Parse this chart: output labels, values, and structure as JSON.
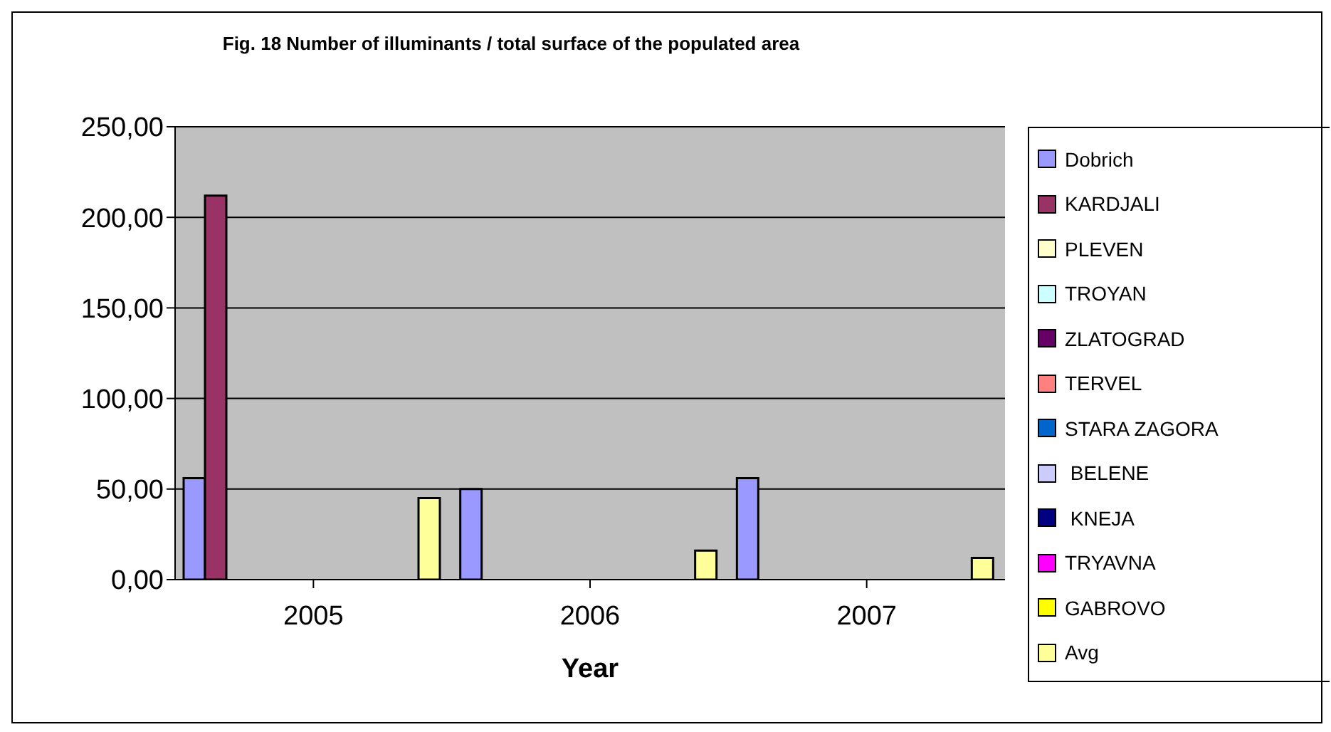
{
  "chart_data": {
    "type": "bar",
    "title": "Fig. 18 Number of illuminants / total surface of the populated area",
    "xlabel": "Year",
    "categories": [
      "2005",
      "2006",
      "2007"
    ],
    "series": [
      {
        "name": "Dobrich",
        "color": "#9999ff",
        "values": [
          56,
          50,
          56
        ]
      },
      {
        "name": "KARDJALI",
        "color": "#993366",
        "values": [
          212,
          null,
          null
        ]
      },
      {
        "name": "PLEVEN",
        "color": "#ffffcc",
        "values": [
          null,
          null,
          null
        ]
      },
      {
        "name": "TROYAN",
        "color": "#ccffff",
        "values": [
          null,
          null,
          null
        ]
      },
      {
        "name": "ZLATOGRAD",
        "color": "#660066",
        "values": [
          null,
          null,
          null
        ]
      },
      {
        "name": "TERVEL",
        "color": "#ff8080",
        "values": [
          null,
          null,
          null
        ]
      },
      {
        "name": "STARA ZAGORA",
        "color": "#0066cc",
        "values": [
          null,
          null,
          null
        ]
      },
      {
        "name": " BELENE",
        "color": "#ccccff",
        "values": [
          null,
          null,
          null
        ]
      },
      {
        "name": " KNEJA",
        "color": "#000080",
        "values": [
          null,
          null,
          null
        ]
      },
      {
        "name": "TRYAVNA",
        "color": "#ff00ff",
        "values": [
          null,
          null,
          null
        ]
      },
      {
        "name": "GABROVO",
        "color": "#ffff00",
        "values": [
          null,
          null,
          null
        ]
      },
      {
        "name": "Avg",
        "color": "#ffff99",
        "values": [
          45,
          16,
          12
        ]
      }
    ],
    "ylim": [
      0,
      250
    ],
    "yticks": [
      {
        "value": 0,
        "label": "0,00"
      },
      {
        "value": 50,
        "label": "50,00"
      },
      {
        "value": 100,
        "label": "100,00"
      },
      {
        "value": 150,
        "label": "150,00"
      },
      {
        "value": 200,
        "label": "200,00"
      },
      {
        "value": 250,
        "label": "250,00"
      }
    ],
    "grid": "y",
    "legend": "right"
  }
}
